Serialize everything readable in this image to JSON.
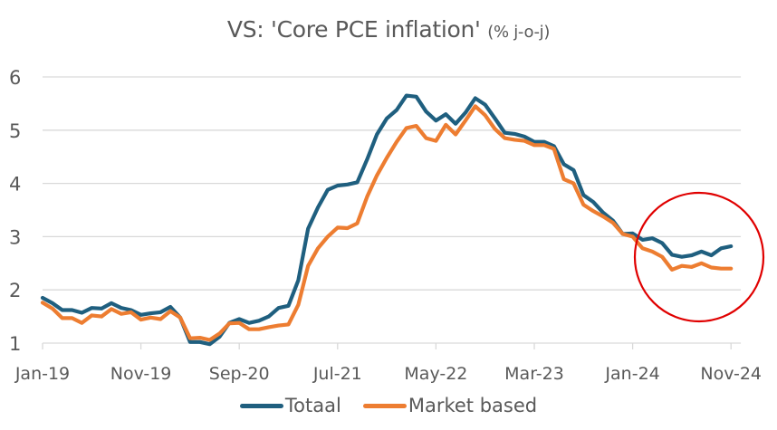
{
  "chart_data": {
    "type": "line",
    "title": "VS: 'Core PCE inflation'",
    "subtitle": "(% j-o-j)",
    "xlabel": "",
    "ylabel": "",
    "ylim": [
      1,
      6
    ],
    "yticks": [
      "1",
      "2",
      "3",
      "4",
      "5",
      "6"
    ],
    "grid": true,
    "legend_position": "bottom",
    "x_start": "Jan-19",
    "x_end": "Nov-24",
    "frequency": "monthly",
    "xtick_labels": [
      "Jan-19",
      "Nov-19",
      "Sep-20",
      "Jul-21",
      "May-22",
      "Mar-23",
      "Jan-24",
      "Nov-24"
    ],
    "xtick_index": [
      0,
      10,
      20,
      30,
      40,
      50,
      60,
      70
    ],
    "series": [
      {
        "name": "Totaal",
        "color": "#1f5f7f",
        "values": [
          1.85,
          1.75,
          1.62,
          1.62,
          1.57,
          1.66,
          1.65,
          1.75,
          1.66,
          1.62,
          1.53,
          1.56,
          1.58,
          1.68,
          1.48,
          1.02,
          1.02,
          0.98,
          1.12,
          1.38,
          1.45,
          1.38,
          1.42,
          1.5,
          1.66,
          1.7,
          2.18,
          3.15,
          3.55,
          3.88,
          3.96,
          3.98,
          4.02,
          4.45,
          4.92,
          5.22,
          5.38,
          5.65,
          5.63,
          5.35,
          5.18,
          5.3,
          5.12,
          5.33,
          5.6,
          5.48,
          5.22,
          4.95,
          4.93,
          4.88,
          4.78,
          4.78,
          4.7,
          4.36,
          4.25,
          3.78,
          3.65,
          3.45,
          3.3,
          3.05,
          3.06,
          2.94,
          2.97,
          2.88,
          2.66,
          2.62,
          2.65,
          2.72,
          2.65,
          2.78,
          2.82
        ]
      },
      {
        "name": "Market based",
        "color": "#ed7d31",
        "values": [
          1.76,
          1.65,
          1.47,
          1.47,
          1.38,
          1.52,
          1.5,
          1.64,
          1.55,
          1.58,
          1.44,
          1.48,
          1.45,
          1.6,
          1.48,
          1.09,
          1.1,
          1.06,
          1.18,
          1.37,
          1.38,
          1.26,
          1.26,
          1.3,
          1.33,
          1.35,
          1.72,
          2.45,
          2.78,
          3.0,
          3.17,
          3.16,
          3.25,
          3.75,
          4.15,
          4.48,
          4.78,
          5.04,
          5.08,
          4.85,
          4.8,
          5.1,
          4.92,
          5.18,
          5.45,
          5.28,
          5.02,
          4.85,
          4.82,
          4.8,
          4.72,
          4.72,
          4.65,
          4.08,
          4.0,
          3.6,
          3.48,
          3.38,
          3.26,
          3.05,
          3.0,
          2.78,
          2.72,
          2.62,
          2.38,
          2.45,
          2.43,
          2.5,
          2.42,
          2.4,
          2.4
        ]
      }
    ],
    "annotations": [
      {
        "type": "circle",
        "label": "",
        "color": "#e00000",
        "around": "Jan-24 to Nov-24 values"
      }
    ]
  }
}
